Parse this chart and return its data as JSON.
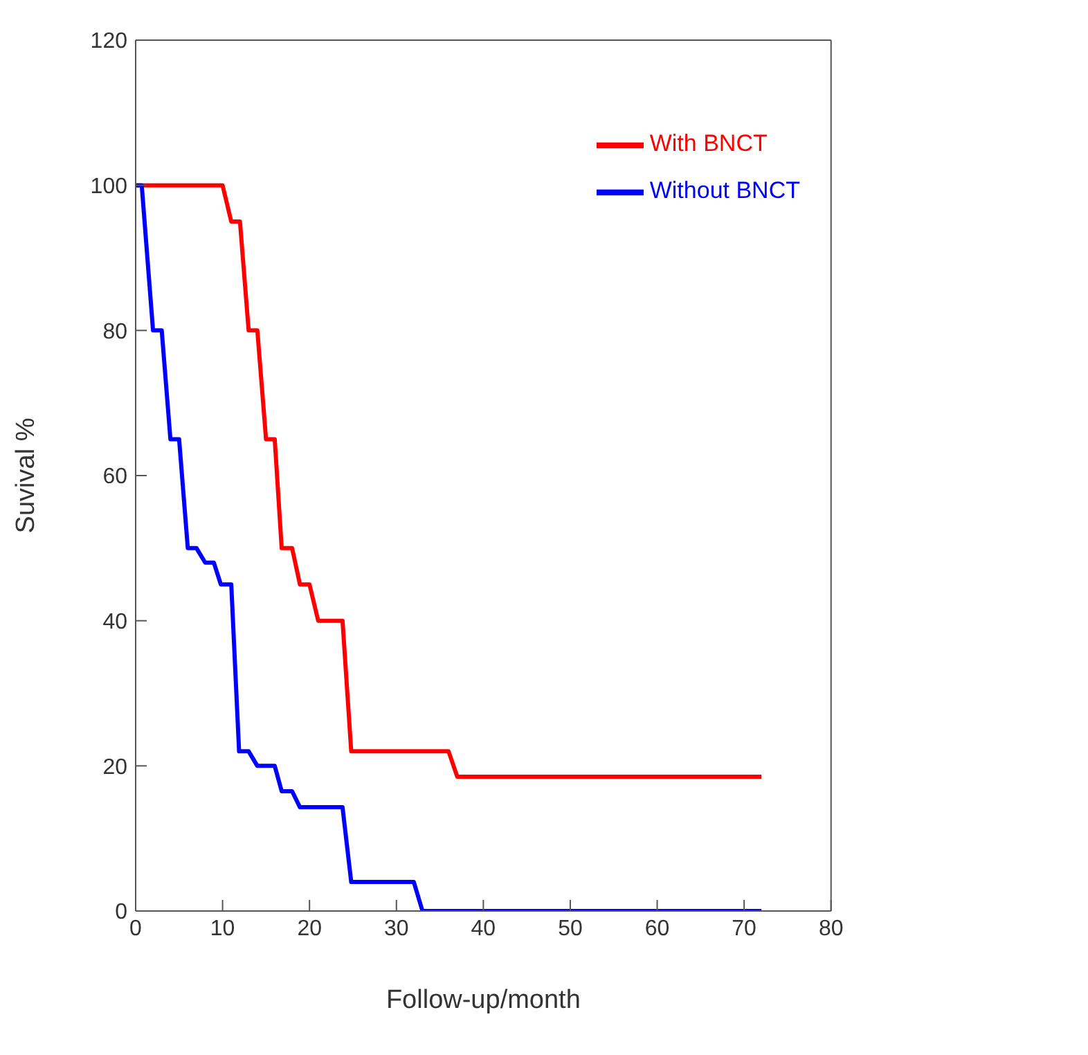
{
  "chart_data": {
    "type": "line",
    "xlabel": "Follow-up/month",
    "ylabel": "Suvival  %",
    "xlim": [
      0,
      80
    ],
    "xticks": [
      0,
      10,
      20,
      30,
      40,
      50,
      60,
      70,
      80
    ],
    "ylim": [
      0,
      120
    ],
    "yticks": [
      0,
      20,
      40,
      60,
      80,
      100,
      120
    ],
    "grid": false,
    "legend": "top right",
    "marker": "none",
    "line_style": "solid",
    "series": [
      {
        "name": "With BNCT",
        "color": "#ff0000",
        "x": [
          0,
          10,
          11,
          12,
          13,
          14,
          15,
          16,
          16.8,
          18,
          18.9,
          20,
          21,
          23.8,
          24.8,
          36,
          37,
          72
        ],
        "values": [
          100,
          100,
          95,
          95,
          80,
          80,
          65,
          65,
          50,
          50,
          45,
          45,
          40,
          40,
          22,
          22,
          18.5,
          18.5
        ]
      },
      {
        "name": "Without BNCT",
        "color": "#0000ff",
        "x": [
          0,
          0.7,
          2,
          3,
          4,
          5,
          6,
          7,
          8,
          9,
          9.8,
          11,
          11.9,
          13,
          14,
          16,
          16.8,
          18,
          18.9,
          23.8,
          24.8,
          32,
          33,
          72
        ],
        "values": [
          100,
          100,
          80,
          80,
          65,
          65,
          50,
          50,
          48,
          48,
          45,
          45,
          22,
          22,
          20,
          20,
          16.5,
          16.5,
          14.3,
          14.3,
          4,
          4,
          0,
          0
        ]
      }
    ]
  }
}
